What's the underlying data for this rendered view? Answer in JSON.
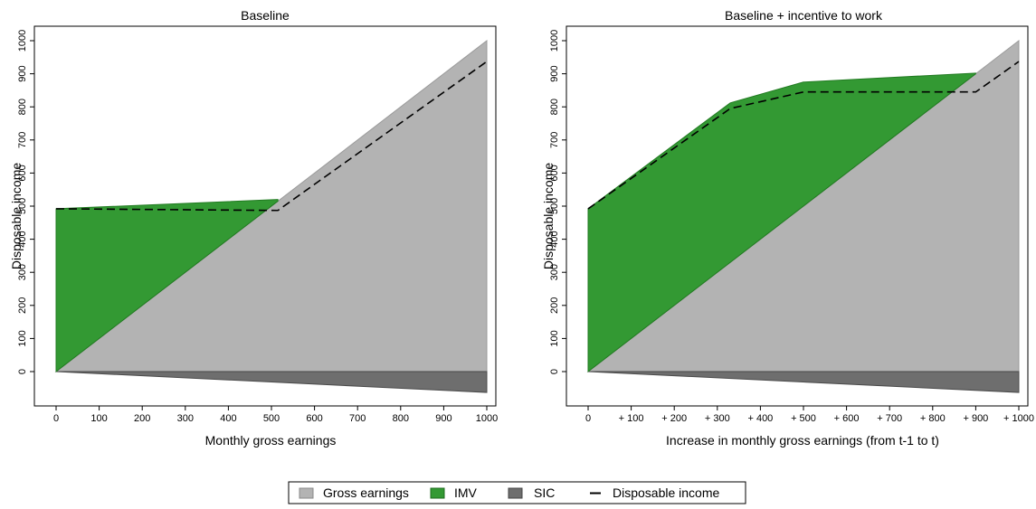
{
  "colors": {
    "gross_earnings": "#b3b3b3",
    "imv": "#339933",
    "sic": "#6e6e6e",
    "disposable_income": "#000000"
  },
  "legend": {
    "placement": "bottom-center",
    "items": [
      {
        "label": "Gross earnings",
        "key": "gross_earnings",
        "icon": "square-swatch"
      },
      {
        "label": "IMV",
        "key": "imv",
        "icon": "square-swatch"
      },
      {
        "label": "SIC",
        "key": "sic",
        "icon": "square-swatch"
      },
      {
        "label": "Disposable income",
        "key": "disposable_income",
        "icon": "dash-line"
      }
    ]
  },
  "chart_data": [
    {
      "type": "area",
      "title": "Baseline",
      "xlabel": "Monthly gross earnings",
      "ylabel": "Disposable income",
      "xlim": [
        0,
        1000
      ],
      "ylim": [
        -60,
        1000
      ],
      "grid": false,
      "x_ticks": [
        0,
        100,
        200,
        300,
        400,
        500,
        600,
        700,
        800,
        900,
        1000
      ],
      "x_tick_labels": [
        "0",
        "100",
        "200",
        "300",
        "400",
        "500",
        "600",
        "700",
        "800",
        "900",
        "1000"
      ],
      "y_ticks": [
        0,
        100,
        200,
        300,
        400,
        500,
        600,
        700,
        800,
        900,
        1000
      ],
      "y_tick_labels": [
        "0",
        "100",
        "200",
        "300",
        "400",
        "500",
        "600",
        "700",
        "800",
        "900",
        "1000"
      ],
      "series": [
        {
          "name": "Gross earnings",
          "key": "gross_earnings",
          "x": [
            0,
            1000
          ],
          "y": [
            0,
            1000
          ]
        },
        {
          "name": "IMV",
          "key": "imv",
          "x": [
            0,
            515
          ],
          "y_low": [
            0,
            515
          ],
          "y_high": [
            492,
            520
          ]
        },
        {
          "name": "SIC",
          "key": "sic",
          "x": [
            0,
            1000
          ],
          "y": [
            0,
            -63
          ]
        },
        {
          "name": "Disposable income",
          "key": "disposable_income",
          "style": "dashed",
          "x": [
            0,
            515,
            1000
          ],
          "y": [
            492,
            487,
            937
          ]
        }
      ]
    },
    {
      "type": "area",
      "title": "Baseline + incentive to work",
      "xlabel": "Increase in monthly gross earnings (from t-1 to t)",
      "ylabel": "Disposable income",
      "xlim": [
        0,
        1000
      ],
      "ylim": [
        -60,
        1000
      ],
      "grid": false,
      "x_ticks": [
        0,
        100,
        200,
        300,
        400,
        500,
        600,
        700,
        800,
        900,
        1000
      ],
      "x_tick_labels": [
        "0",
        "+ 100",
        "+ 200",
        "+ 300",
        "+ 400",
        "+ 500",
        "+ 600",
        "+ 700",
        "+ 800",
        "+ 900",
        "+ 1000"
      ],
      "y_ticks": [
        0,
        100,
        200,
        300,
        400,
        500,
        600,
        700,
        800,
        900,
        1000
      ],
      "y_tick_labels": [
        "0",
        "100",
        "200",
        "300",
        "400",
        "500",
        "600",
        "700",
        "800",
        "900",
        "1000"
      ],
      "series": [
        {
          "name": "Gross earnings",
          "key": "gross_earnings",
          "x": [
            0,
            1000
          ],
          "y": [
            0,
            1000
          ]
        },
        {
          "name": "IMV",
          "key": "imv",
          "x": [
            0,
            330,
            500,
            900
          ],
          "y_low": [
            0,
            330,
            500,
            900
          ],
          "y_high": [
            492,
            812,
            875,
            902
          ]
        },
        {
          "name": "SIC",
          "key": "sic",
          "x": [
            0,
            1000
          ],
          "y": [
            0,
            -63
          ]
        },
        {
          "name": "Disposable income",
          "key": "disposable_income",
          "style": "dashed",
          "x": [
            0,
            330,
            500,
            900,
            1000
          ],
          "y": [
            492,
            795,
            845,
            845,
            937
          ]
        }
      ]
    }
  ]
}
